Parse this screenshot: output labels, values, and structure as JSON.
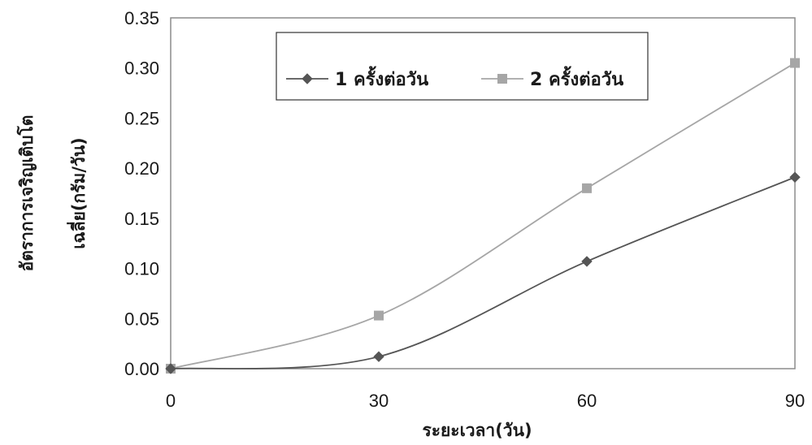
{
  "chart_data": {
    "type": "line",
    "x": [
      0,
      30,
      60,
      90
    ],
    "x_ticks": [
      "0",
      "30",
      "60",
      "90"
    ],
    "y_ticks": [
      "0.00",
      "0.05",
      "0.10",
      "0.15",
      "0.20",
      "0.25",
      "0.30",
      "0.35"
    ],
    "xlim": [
      0,
      90
    ],
    "ylim": [
      0,
      0.35
    ],
    "xlabel": "ระยะเวลา(วัน)",
    "ylabel_line1": "อัตราการเจริญเติบโต",
    "ylabel_line2": "เฉลี่ย(กรัม/วัน)",
    "grid": false,
    "legend_position": "top-center",
    "series": [
      {
        "name": "1 ครั้งต่อวัน",
        "values": [
          0.0,
          0.012,
          0.107,
          0.191
        ],
        "color": "#555555",
        "marker": "diamond"
      },
      {
        "name": "2 ครั้งต่อวัน",
        "values": [
          0.0,
          0.053,
          0.18,
          0.305
        ],
        "color": "#a6a6a6",
        "marker": "square"
      }
    ]
  }
}
